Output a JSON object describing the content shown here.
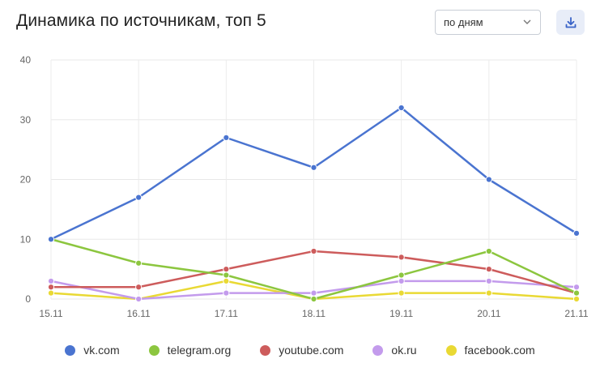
{
  "header": {
    "title": "Динамика по источникам, топ 5",
    "period_select_value": "по дням",
    "download_icon": "download-icon"
  },
  "chart_data": {
    "type": "line",
    "x": [
      "15.11",
      "16.11",
      "17.11",
      "18.11",
      "19.11",
      "20.11",
      "21.11"
    ],
    "ylim": [
      0,
      40
    ],
    "yticks": [
      "0",
      "10",
      "20",
      "30",
      "40"
    ],
    "grid": true,
    "legend_position": "bottom",
    "series": [
      {
        "name": "vk.com",
        "color": "#4a74d0",
        "values": [
          10,
          17,
          27,
          22,
          32,
          20,
          11
        ]
      },
      {
        "name": "telegram.org",
        "color": "#8cc63f",
        "values": [
          10,
          6,
          4,
          0,
          4,
          8,
          1
        ]
      },
      {
        "name": "youtube.com",
        "color": "#cd5c5c",
        "values": [
          2,
          2,
          5,
          8,
          7,
          5,
          1
        ]
      },
      {
        "name": "ok.ru",
        "color": "#c39bec",
        "values": [
          3,
          0,
          1,
          1,
          3,
          3,
          2
        ]
      },
      {
        "name": "facebook.com",
        "color": "#e9d934",
        "values": [
          1,
          0,
          3,
          0,
          1,
          1,
          0
        ]
      }
    ]
  }
}
